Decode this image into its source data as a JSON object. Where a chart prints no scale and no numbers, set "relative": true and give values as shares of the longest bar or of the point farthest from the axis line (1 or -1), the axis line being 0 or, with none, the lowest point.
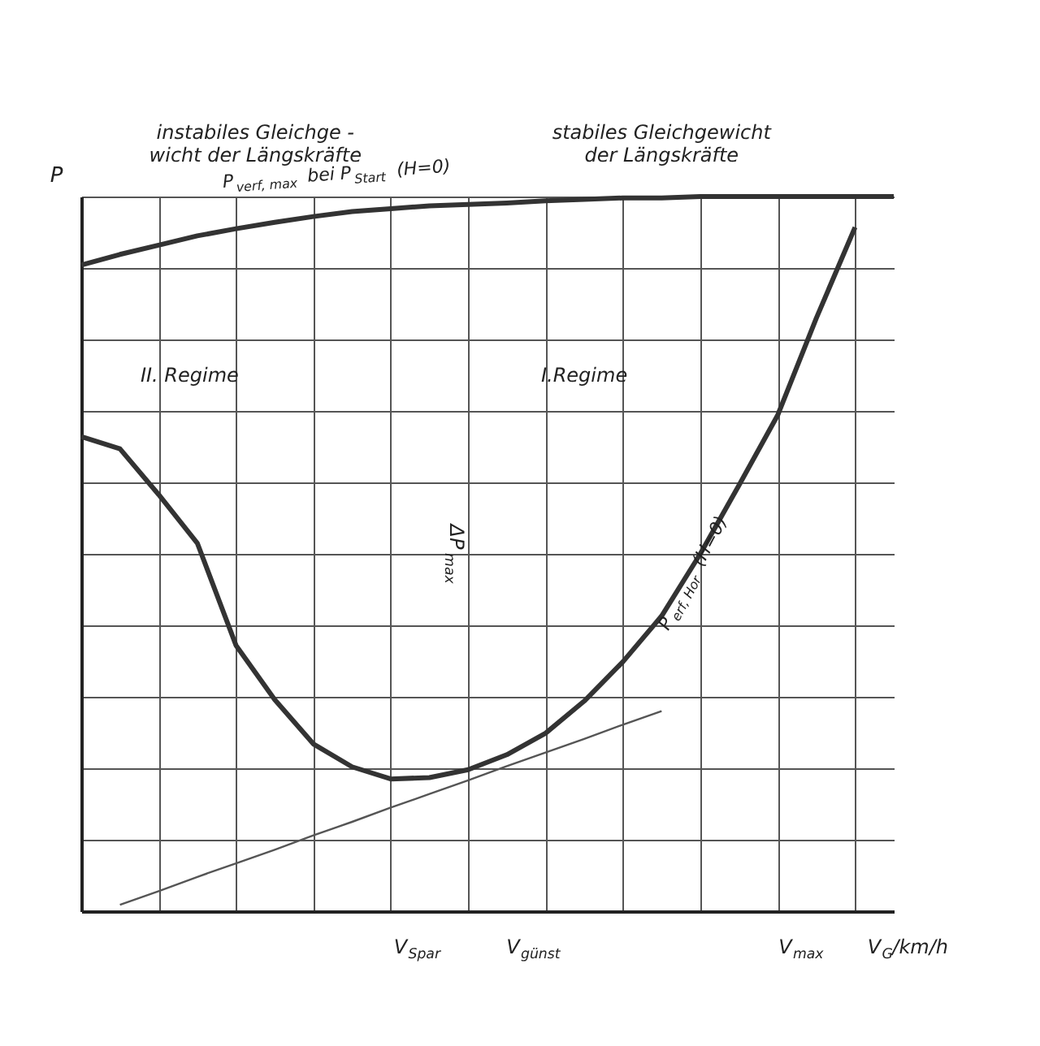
{
  "chart_data": {
    "type": "line",
    "relative": true,
    "xlabel": "V$_{G}$/km/h",
    "ylabel": "P",
    "categories": [
      null,
      null,
      null,
      null,
      null,
      null,
      null,
      null,
      null,
      null,
      null,
      null,
      null,
      null,
      null,
      null,
      null,
      null,
      null,
      null,
      null,
      null
    ],
    "series": [
      {
        "name": "P$_{verf, max}$ bei P$_{Start}$ (H=0)",
        "color": "#333333",
        "values": [
          0.904,
          0.919,
          0.932,
          0.945,
          0.955,
          0.964,
          0.972,
          0.979,
          0.983,
          0.987,
          0.989,
          0.991,
          0.994,
          0.996,
          0.998,
          0.998,
          1,
          1,
          1,
          1,
          1,
          1
        ]
      },
      {
        "name": "P$_{erf, Hor}$ (H=0)",
        "color": "#333333",
        "values": [
          0.664,
          0.647,
          0.583,
          0.515,
          0.372,
          0.296,
          0.234,
          0.202,
          0.185,
          0.187,
          0.198,
          0.219,
          0.249,
          0.294,
          0.349,
          0.413,
          0.5,
          0.596,
          0.694,
          0.83,
          0.957,
          null
        ]
      },
      {
        "color": "#555555",
        "values": [
          null,
          0.009,
          0.028,
          0.048,
          0.067,
          0.086,
          0.106,
          0.125,
          0.145,
          0.164,
          0.183,
          0.203,
          0.222,
          0.241,
          0.261,
          0.28,
          null,
          null,
          null,
          null,
          null,
          null
        ]
      }
    ],
    "annotations": [
      "instabiles Gleichge -\nwicht der Längskräfte",
      "stabiles Gleichgewicht\nder Längskräfte",
      "II. Regime",
      "I.Regime",
      "ΔP$_{max}$",
      "V$_{Spar}$",
      "V$_{günst}$",
      "V$_{max}$"
    ],
    "grid": true,
    "marker": "none",
    "line_style": "solid"
  }
}
